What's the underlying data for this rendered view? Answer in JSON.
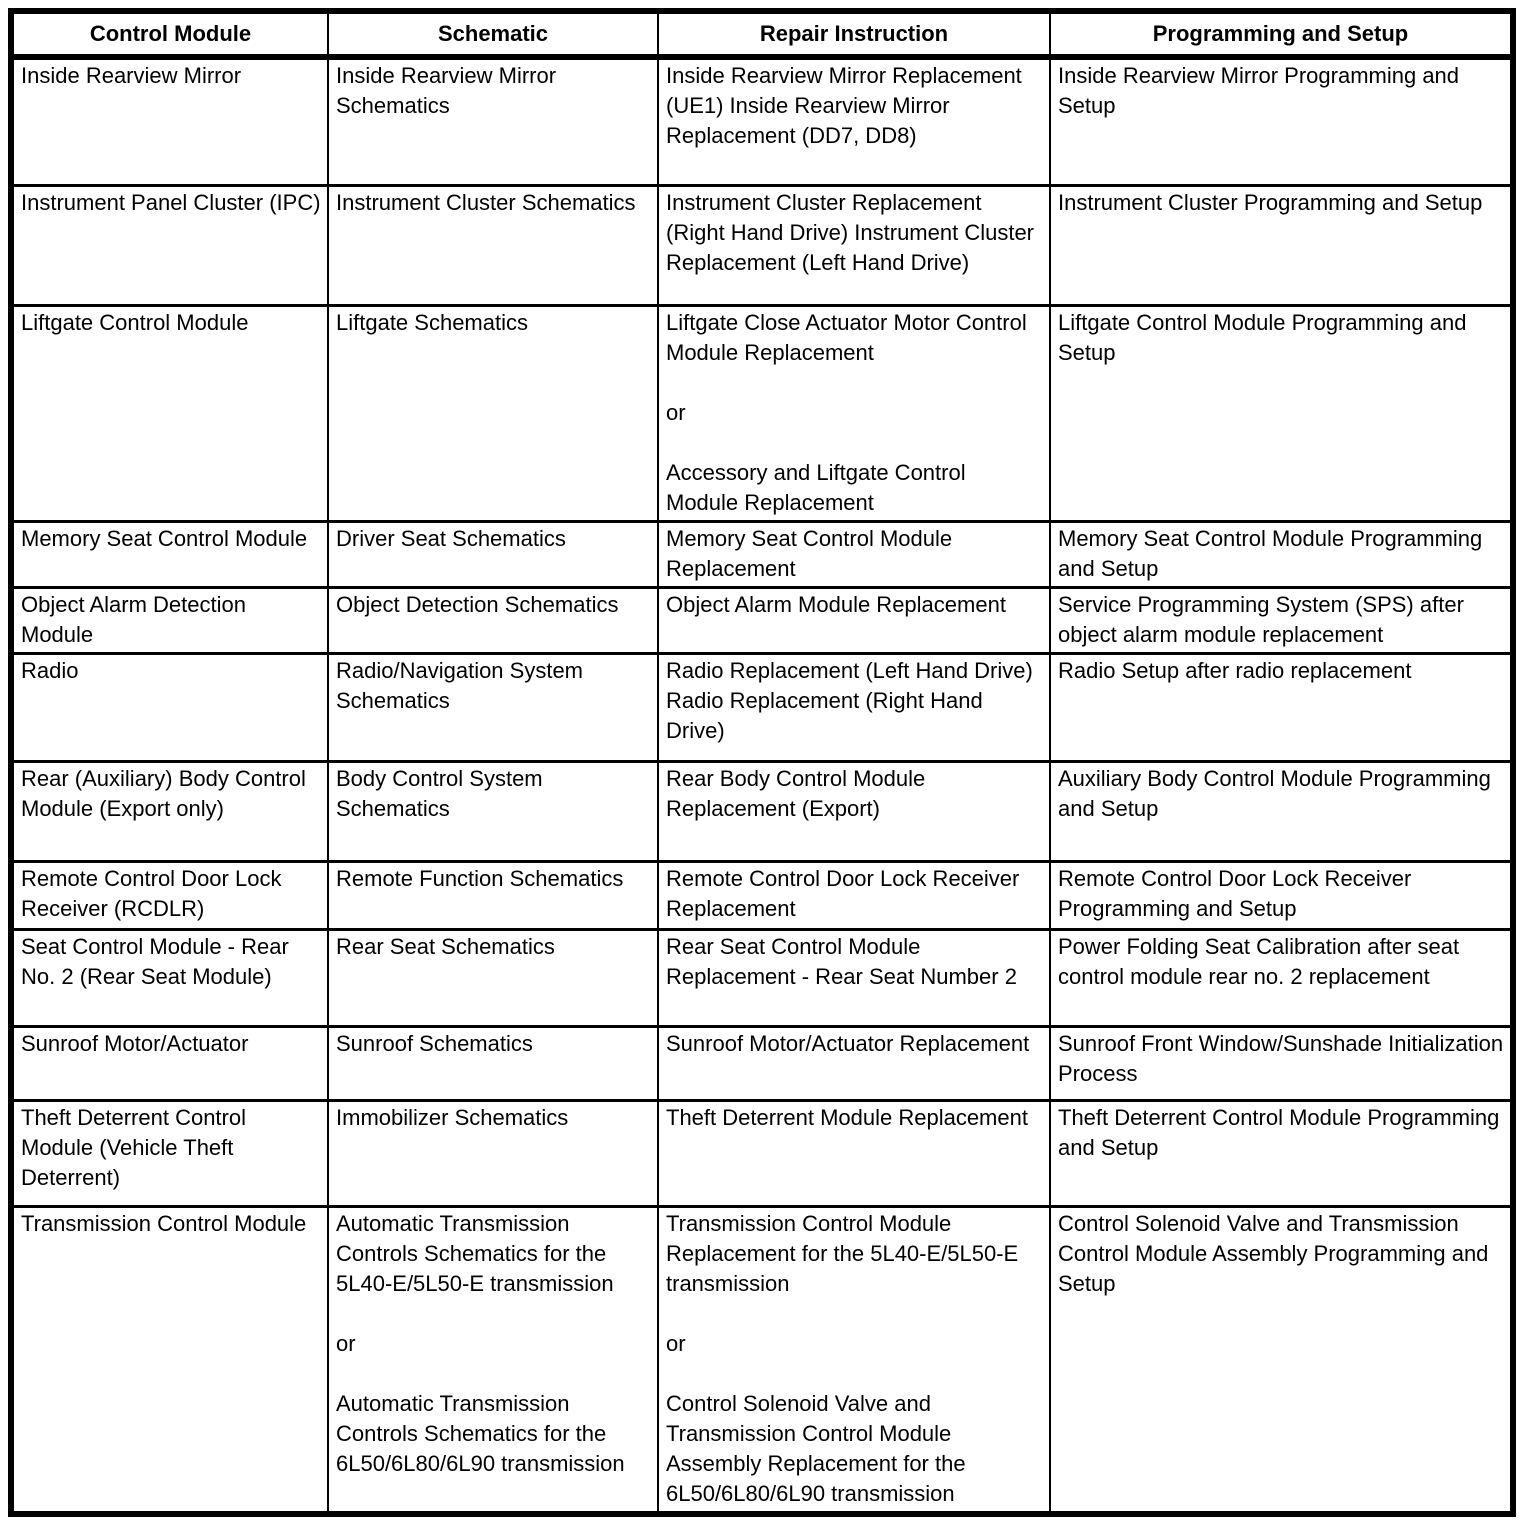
{
  "document": {
    "colors": {
      "border": "#000000",
      "background": "#ffffff",
      "text": "#000000"
    },
    "table": {
      "headers": [
        "Control Module",
        "Schematic",
        "Repair Instruction",
        "Programming and Setup"
      ],
      "rows": [
        {
          "cells": [
            [
              "Inside Rearview Mirror"
            ],
            [
              "Inside Rearview Mirror Schematics"
            ],
            [
              "Inside Rearview Mirror Replacement (UE1) Inside Rearview Mirror Replacement (DD7, DD8)"
            ],
            [
              "Inside Rearview Mirror Programming and Setup"
            ]
          ]
        },
        {
          "cells": [
            [
              "Instrument Panel Cluster (IPC)"
            ],
            [
              "Instrument Cluster Schematics"
            ],
            [
              "Instrument Cluster Replacement (Right Hand Drive) Instrument Cluster Replacement (Left Hand Drive)"
            ],
            [
              "Instrument Cluster Programming and Setup"
            ]
          ]
        },
        {
          "cells": [
            [
              "Liftgate Control Module"
            ],
            [
              "Liftgate Schematics"
            ],
            [
              "Liftgate Close Actuator Motor Control Module Replacement",
              "or",
              "Accessory and Liftgate Control Module Replacement"
            ],
            [
              "Liftgate Control Module Programming and Setup"
            ]
          ]
        },
        {
          "cells": [
            [
              "Memory Seat Control Module"
            ],
            [
              "Driver Seat Schematics"
            ],
            [
              "Memory Seat Control Module Replacement"
            ],
            [
              "Memory Seat Control Module Programming and Setup"
            ]
          ]
        },
        {
          "cells": [
            [
              "Object Alarm Detection Module"
            ],
            [
              "Object Detection Schematics"
            ],
            [
              "Object Alarm Module Replacement"
            ],
            [
              "Service Programming System (SPS) after object alarm module replacement"
            ]
          ]
        },
        {
          "cells": [
            [
              "Radio"
            ],
            [
              "Radio/Navigation System Schematics"
            ],
            [
              "Radio Replacement (Left Hand Drive) Radio Replacement (Right Hand Drive)"
            ],
            [
              "Radio Setup after radio replacement"
            ]
          ]
        },
        {
          "cells": [
            [
              "Rear (Auxiliary) Body Control Module (Export only)"
            ],
            [
              "Body Control System Schematics"
            ],
            [
              "Rear Body Control Module Replacement (Export)"
            ],
            [
              "Auxiliary Body Control Module Programming and Setup"
            ]
          ]
        },
        {
          "cells": [
            [
              "Remote Control Door Lock Receiver (RCDLR)"
            ],
            [
              "Remote Function Schematics"
            ],
            [
              "Remote Control Door Lock Receiver Replacement"
            ],
            [
              "Remote Control Door Lock Receiver Programming and Setup"
            ]
          ]
        },
        {
          "cells": [
            [
              "Seat Control Module - Rear No. 2 (Rear Seat Module)"
            ],
            [
              "Rear Seat Schematics"
            ],
            [
              "Rear Seat Control Module Replacement - Rear Seat Number 2"
            ],
            [
              "Power Folding Seat Calibration after seat control module rear no. 2 replacement"
            ]
          ]
        },
        {
          "cells": [
            [
              "Sunroof Motor/Actuator"
            ],
            [
              "Sunroof Schematics"
            ],
            [
              "Sunroof Motor/Actuator Replacement"
            ],
            [
              "Sunroof Front Window/Sunshade Initialization Process"
            ]
          ]
        },
        {
          "cells": [
            [
              "Theft Deterrent Control Module (Vehicle Theft Deterrent)"
            ],
            [
              "Immobilizer Schematics"
            ],
            [
              "Theft Deterrent Module Replacement"
            ],
            [
              "Theft Deterrent Control Module Programming and Setup"
            ]
          ]
        },
        {
          "cells": [
            [
              "Transmission Control Module"
            ],
            [
              "Automatic Transmission Controls Schematics for the 5L40-E/5L50-E transmission",
              "or",
              "Automatic Transmission Controls Schematics for the 6L50/6L80/6L90 transmission"
            ],
            [
              "Transmission Control Module Replacement for the 5L40-E/5L50-E transmission",
              "or",
              "Control Solenoid Valve and Transmission Control Module Assembly Replacement for the 6L50/6L80/6L90 transmission"
            ],
            [
              "Control Solenoid Valve and Transmission Control Module Assembly Programming and Setup"
            ]
          ]
        }
      ]
    }
  }
}
